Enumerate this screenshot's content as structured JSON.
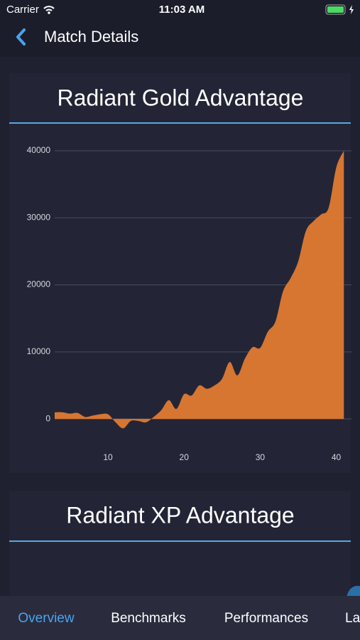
{
  "status_bar": {
    "carrier": "Carrier",
    "time": "11:03 AM"
  },
  "nav": {
    "title": "Match Details"
  },
  "chart_data": [
    {
      "type": "area",
      "title": "Radiant Gold Advantage",
      "x": [
        3,
        4,
        5,
        6,
        7,
        8,
        9,
        10,
        11,
        12,
        13,
        14,
        15,
        16,
        17,
        18,
        19,
        20,
        21,
        22,
        23,
        24,
        25,
        26,
        27,
        28,
        29,
        30,
        31,
        32,
        33,
        34,
        35,
        36,
        37,
        38,
        39,
        40,
        41
      ],
      "series": [
        {
          "name": "Radiant Gold Advantage",
          "color": "#e07a32",
          "values": [
            1000,
            1000,
            800,
            900,
            300,
            500,
            700,
            700,
            -500,
            -1400,
            -300,
            -300,
            -500,
            300,
            1300,
            2800,
            1500,
            3700,
            3500,
            5000,
            4500,
            5000,
            6000,
            8500,
            6500,
            9000,
            10700,
            10600,
            13000,
            14500,
            19000,
            21000,
            23500,
            28000,
            29500,
            30500,
            31500,
            37500,
            40000
          ]
        }
      ],
      "xlim": [
        3,
        42
      ],
      "xticks": [
        10,
        20,
        30,
        40
      ],
      "ylim": [
        -2000,
        40000
      ],
      "yticks": [
        0,
        10000,
        20000,
        30000,
        40000
      ],
      "grid": true
    },
    {
      "type": "area",
      "title": "Radiant XP Advantage"
    }
  ],
  "tabs": [
    "Overview",
    "Benchmarks",
    "Performances",
    "La"
  ],
  "active_tab": 0
}
